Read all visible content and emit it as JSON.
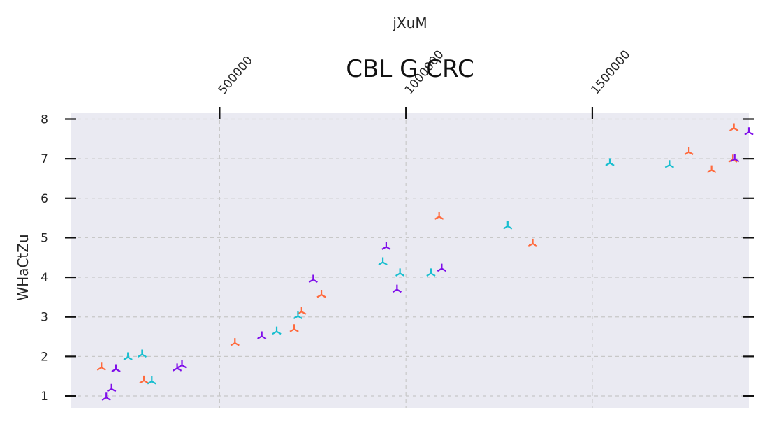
{
  "chart_data": {
    "type": "scatter",
    "title": "CBL G CRC",
    "xlabel": "jXuM",
    "ylabel": "WHaCtZu",
    "xlim": [
      100000,
      1920000
    ],
    "ylim": [
      0.7,
      8.15
    ],
    "x_ticks": [
      500000,
      1000000,
      1500000
    ],
    "y_ticks": [
      1,
      2,
      3,
      4,
      5,
      6,
      7,
      8
    ],
    "x_axis_position": "top",
    "grid": true,
    "marker": "tri_up",
    "colors": {
      "orange": "#ff6a3d",
      "cyan": "#17becf",
      "purple": "#7f0eea"
    },
    "points": [
      {
        "x": 183000,
        "y": 1.72,
        "color": "orange"
      },
      {
        "x": 297000,
        "y": 1.39,
        "color": "orange"
      },
      {
        "x": 541000,
        "y": 2.34,
        "color": "orange"
      },
      {
        "x": 700000,
        "y": 2.69,
        "color": "orange"
      },
      {
        "x": 720000,
        "y": 3.13,
        "color": "orange"
      },
      {
        "x": 773000,
        "y": 3.56,
        "color": "orange"
      },
      {
        "x": 1089000,
        "y": 5.53,
        "color": "orange"
      },
      {
        "x": 1340000,
        "y": 4.85,
        "color": "orange"
      },
      {
        "x": 1759000,
        "y": 7.17,
        "color": "orange"
      },
      {
        "x": 1820000,
        "y": 6.71,
        "color": "orange"
      },
      {
        "x": 1877000,
        "y": 6.98,
        "color": "orange"
      },
      {
        "x": 1880000,
        "y": 7.77,
        "color": "orange"
      },
      {
        "x": 254000,
        "y": 1.98,
        "color": "cyan"
      },
      {
        "x": 292000,
        "y": 2.05,
        "color": "cyan"
      },
      {
        "x": 318000,
        "y": 1.37,
        "color": "cyan"
      },
      {
        "x": 653000,
        "y": 2.63,
        "color": "cyan"
      },
      {
        "x": 710000,
        "y": 3.02,
        "color": "cyan"
      },
      {
        "x": 938000,
        "y": 4.38,
        "color": "cyan"
      },
      {
        "x": 984000,
        "y": 4.1,
        "color": "cyan"
      },
      {
        "x": 1067000,
        "y": 4.1,
        "color": "cyan"
      },
      {
        "x": 1273000,
        "y": 5.29,
        "color": "cyan"
      },
      {
        "x": 1547000,
        "y": 6.89,
        "color": "cyan"
      },
      {
        "x": 1707000,
        "y": 6.84,
        "color": "cyan"
      },
      {
        "x": 196000,
        "y": 0.96,
        "color": "purple"
      },
      {
        "x": 210000,
        "y": 1.18,
        "color": "purple"
      },
      {
        "x": 222000,
        "y": 1.68,
        "color": "purple"
      },
      {
        "x": 386000,
        "y": 1.7,
        "color": "purple"
      },
      {
        "x": 399000,
        "y": 1.78,
        "color": "purple"
      },
      {
        "x": 613000,
        "y": 2.51,
        "color": "purple"
      },
      {
        "x": 751000,
        "y": 3.94,
        "color": "purple"
      },
      {
        "x": 947000,
        "y": 4.77,
        "color": "purple"
      },
      {
        "x": 976000,
        "y": 3.69,
        "color": "purple"
      },
      {
        "x": 1096000,
        "y": 4.22,
        "color": "purple"
      },
      {
        "x": 1882000,
        "y": 6.99,
        "color": "purple"
      },
      {
        "x": 1937000,
        "y": 7.67,
        "color": "purple"
      }
    ]
  }
}
